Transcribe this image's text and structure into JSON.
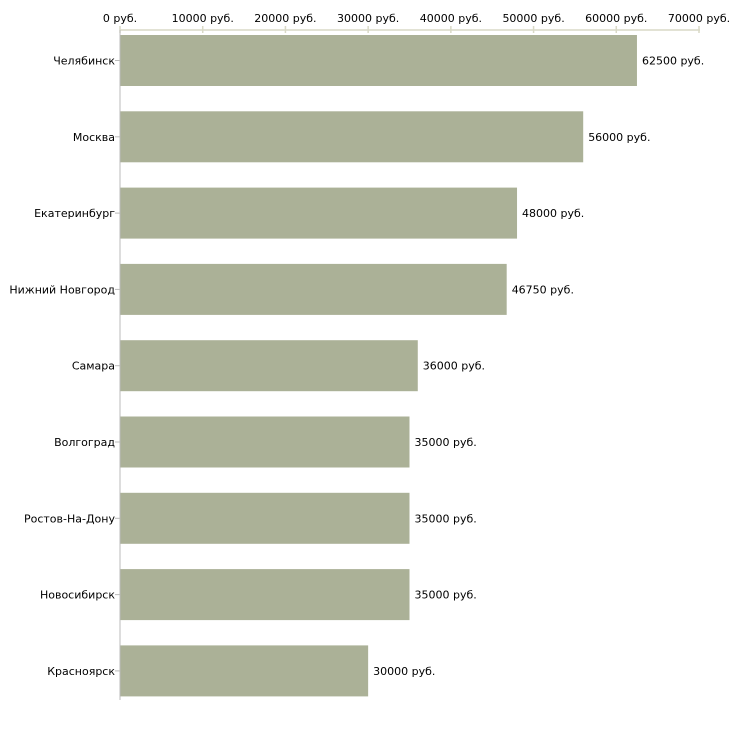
{
  "chart_data": {
    "type": "bar",
    "orientation": "horizontal",
    "title": "",
    "xlabel": "",
    "ylabel": "",
    "currency_suffix": " руб.",
    "categories": [
      "Челябинск",
      "Москва",
      "Екатеринбург",
      "Нижний Новгород",
      "Самара",
      "Волгоград",
      "Ростов-На-Дону",
      "Новосибирск",
      "Красноярск"
    ],
    "values": [
      62500,
      56000,
      48000,
      46750,
      36000,
      35000,
      35000,
      35000,
      30000
    ],
    "value_labels": [
      "62500 руб.",
      "56000 руб.",
      "48000 руб.",
      "46750 руб.",
      "36000 руб.",
      "35000 руб.",
      "35000 руб.",
      "35000 руб.",
      "30000 руб."
    ],
    "xlim": [
      0,
      70000
    ],
    "ticks": [
      0,
      10000,
      20000,
      30000,
      40000,
      50000,
      60000,
      70000
    ],
    "tick_labels": [
      "0 руб.",
      "10000 руб.",
      "20000 руб.",
      "30000 руб.",
      "40000 руб.",
      "50000 руб.",
      "60000 руб.",
      "70000 руб."
    ],
    "axis_position": "top",
    "grid": false,
    "legend": "none",
    "bar_color": "#abb197"
  }
}
